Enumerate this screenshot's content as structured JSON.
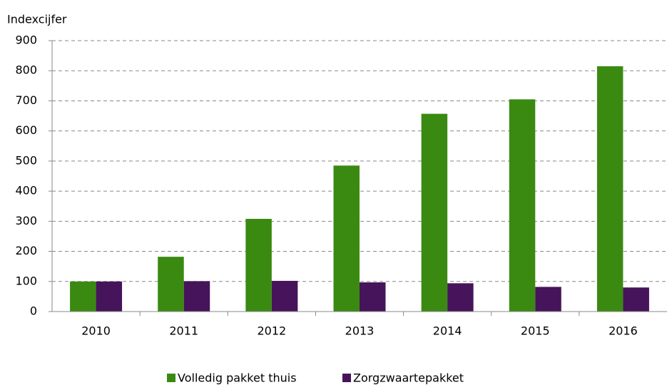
{
  "chart_data": {
    "type": "bar",
    "y_axis_label": "Indexcijfer",
    "categories": [
      "2010",
      "2011",
      "2012",
      "2013",
      "2014",
      "2015",
      "2016"
    ],
    "series": [
      {
        "name": "Volledig pakket thuis",
        "color": "#3a8a12",
        "values": [
          100,
          182,
          308,
          485,
          657,
          705,
          815
        ]
      },
      {
        "name": "Zorgzwaartepakket",
        "color": "#46145a",
        "values": [
          100,
          101,
          102,
          97,
          94,
          82,
          80
        ]
      }
    ],
    "ylim": [
      0,
      900
    ],
    "yticks": [
      0,
      100,
      200,
      300,
      400,
      500,
      600,
      700,
      800,
      900
    ],
    "grid": true,
    "legend": "bottom"
  }
}
